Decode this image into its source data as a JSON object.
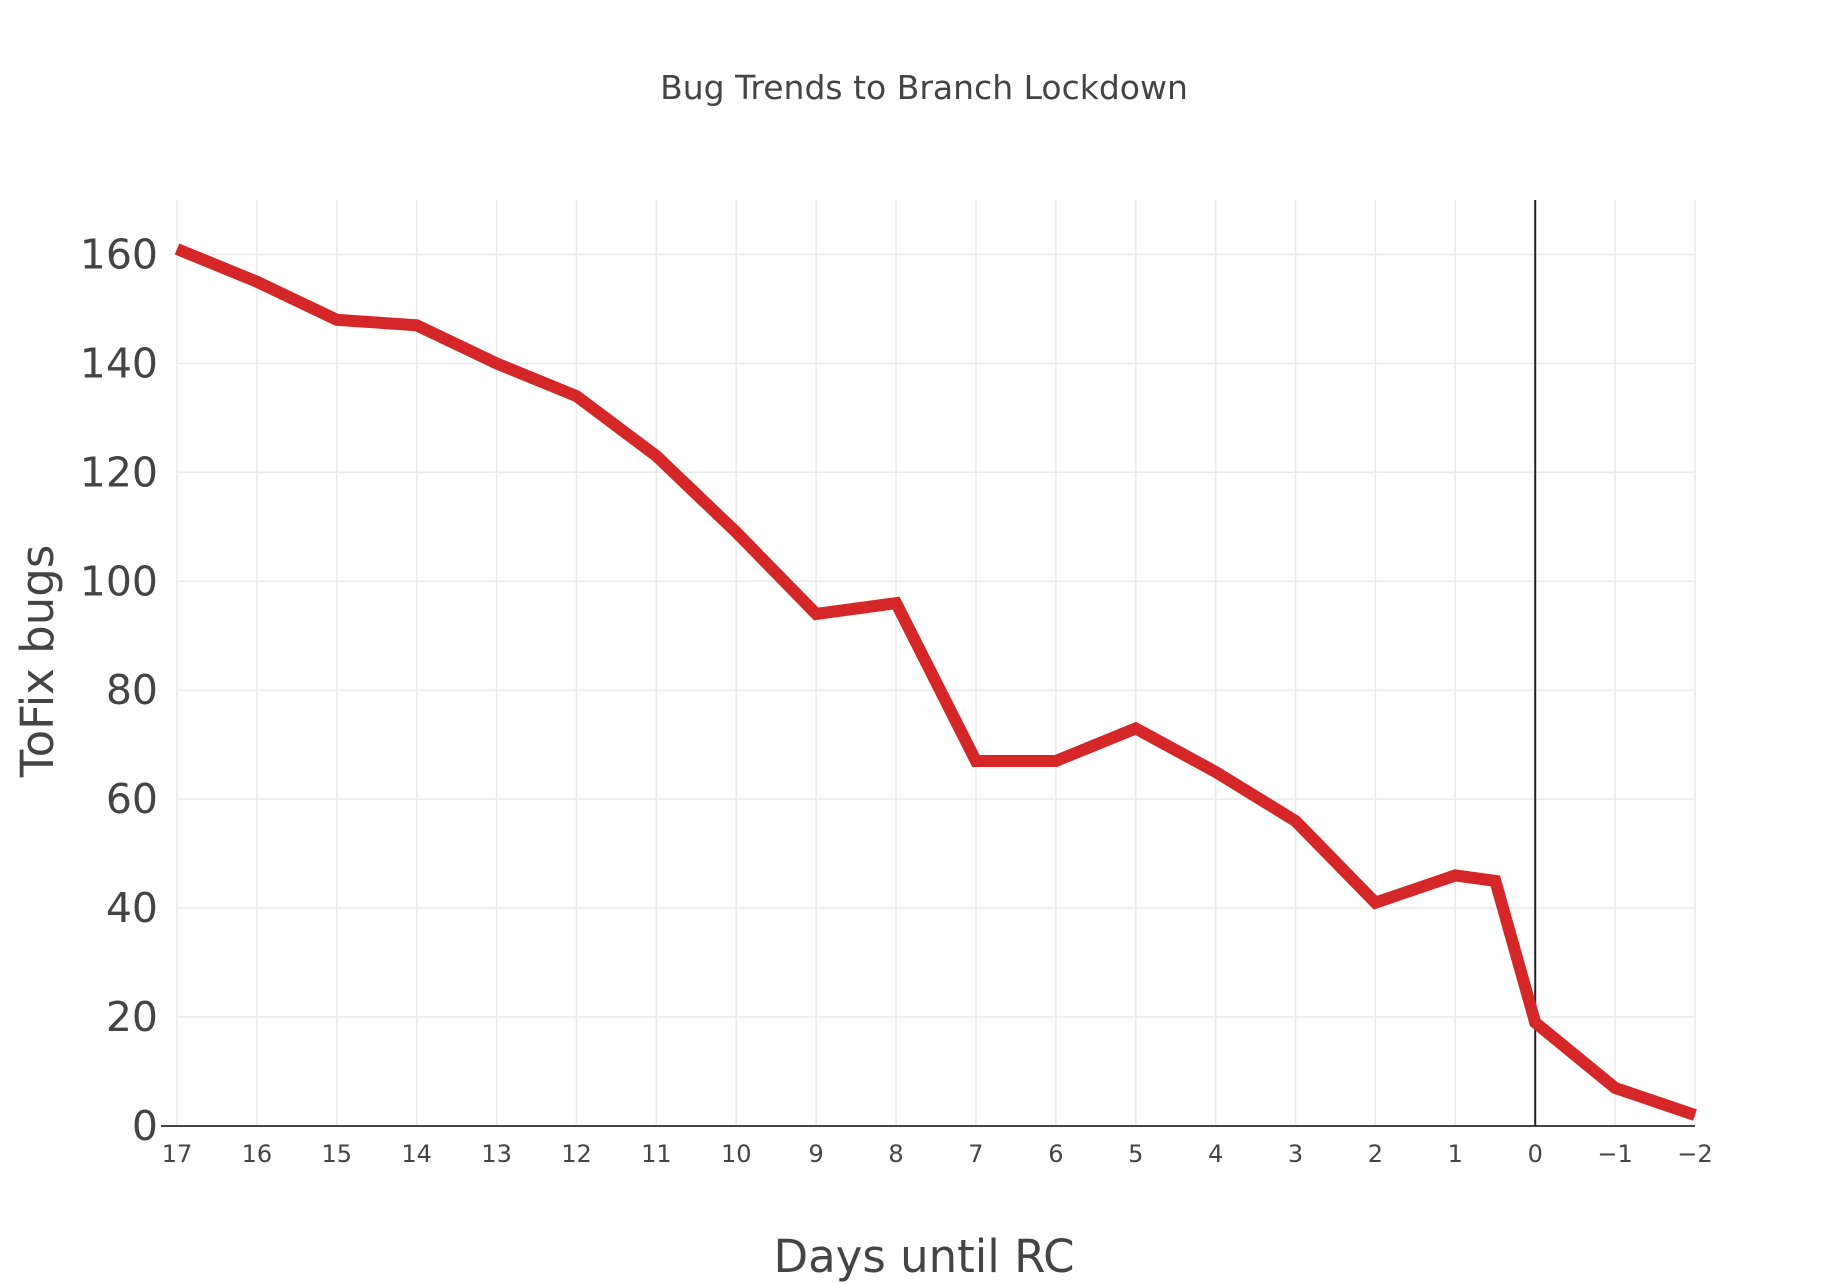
{
  "chart_data": {
    "type": "line",
    "title": "Bug Trends to Branch Lockdown",
    "xlabel": "Days until RC",
    "ylabel": "ToFix bugs",
    "x_reversed": true,
    "xlim": [
      17,
      -2
    ],
    "ylim": [
      0,
      170
    ],
    "grid": true,
    "xticks": [
      17,
      16,
      15,
      14,
      13,
      12,
      11,
      10,
      9,
      8,
      7,
      6,
      5,
      4,
      3,
      2,
      1,
      0,
      -1,
      -2
    ],
    "xtick_labels": [
      "17",
      "16",
      "15",
      "14",
      "13",
      "12",
      "11",
      "10",
      "9",
      "8",
      "7",
      "6",
      "5",
      "4",
      "3",
      "2",
      "1",
      "0",
      "−1",
      "−2"
    ],
    "yticks": [
      0,
      20,
      40,
      60,
      80,
      100,
      120,
      140,
      160
    ],
    "ytick_labels": [
      "0",
      "20",
      "40",
      "60",
      "80",
      "100",
      "120",
      "140",
      "160"
    ],
    "vertical_line_at_x": 0,
    "series": [
      {
        "color": "#d62728",
        "x": [
          17,
          16,
          15,
          14,
          13,
          12,
          11,
          10,
          9,
          8,
          7,
          6,
          5,
          4,
          3,
          2,
          1,
          0.5,
          0,
          -1,
          -2
        ],
        "y": [
          161,
          155,
          148,
          147,
          140,
          134,
          123,
          109,
          94,
          96,
          67,
          67,
          73,
          65,
          56,
          41,
          46,
          45,
          19,
          7,
          2
        ]
      }
    ]
  }
}
